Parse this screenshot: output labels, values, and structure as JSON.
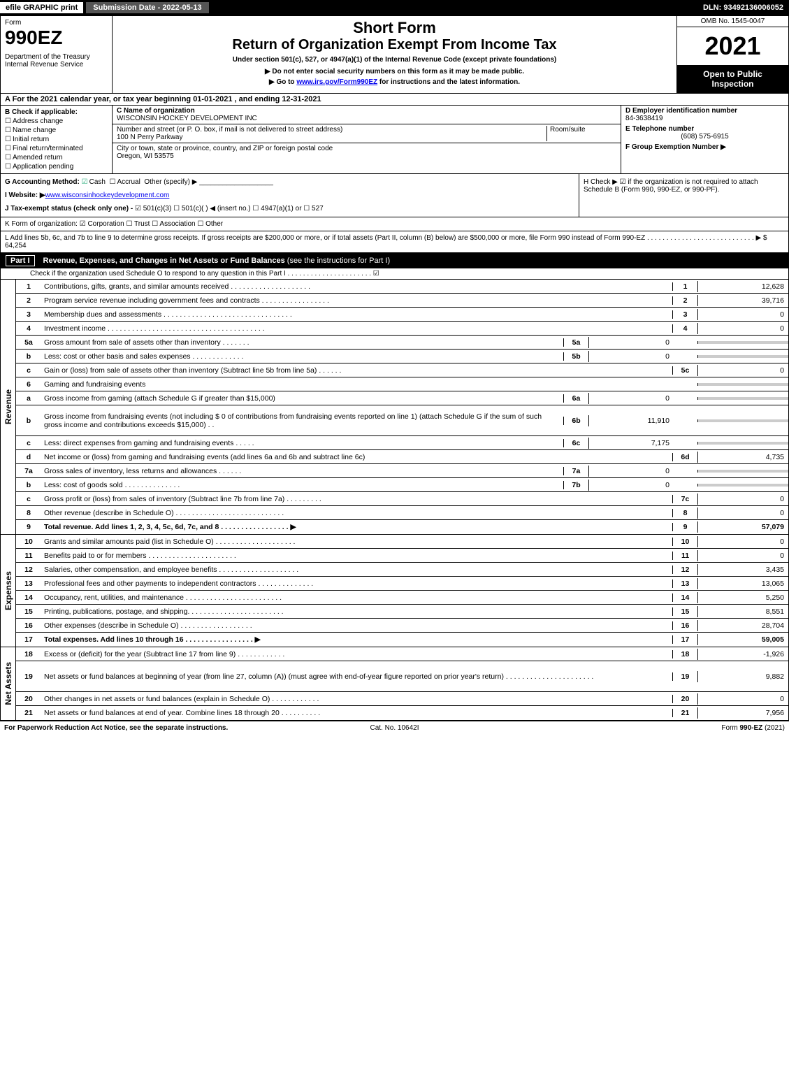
{
  "topbar": {
    "efile": "efile GRAPHIC print",
    "submission": "Submission Date - 2022-05-13",
    "dln": "DLN: 93492136006052"
  },
  "header": {
    "form_label": "Form",
    "form_num": "990EZ",
    "dept": "Department of the Treasury Internal Revenue Service",
    "short": "Short Form",
    "title": "Return of Organization Exempt From Income Tax",
    "under": "Under section 501(c), 527, or 4947(a)(1) of the Internal Revenue Code (except private foundations)",
    "note1": "▶ Do not enter social security numbers on this form as it may be made public.",
    "note2": "▶ Go to www.irs.gov/Form990EZ for instructions and the latest information.",
    "omb": "OMB No. 1545-0047",
    "year": "2021",
    "open": "Open to Public Inspection"
  },
  "row_a": "A  For the 2021 calendar year, or tax year beginning 01-01-2021 , and ending 12-31-2021",
  "section_b": {
    "title": "B  Check if applicable:",
    "items": [
      "Address change",
      "Name change",
      "Initial return",
      "Final return/terminated",
      "Amended return",
      "Application pending"
    ]
  },
  "section_c": {
    "name_label": "C Name of organization",
    "name": "WISCONSIN HOCKEY DEVELOPMENT INC",
    "street_label": "Number and street (or P. O. box, if mail is not delivered to street address)",
    "room_label": "Room/suite",
    "street": "100 N Perry Parkway",
    "city_label": "City or town, state or province, country, and ZIP or foreign postal code",
    "city": "Oregon, WI  53575"
  },
  "section_d": {
    "ein_label": "D Employer identification number",
    "ein": "84-3638419",
    "phone_label": "E Telephone number",
    "phone": "(608) 575-6915",
    "group_label": "F Group Exemption Number  ▶"
  },
  "section_g": {
    "g_label": "G Accounting Method:",
    "g_cash": "Cash",
    "g_accrual": "Accrual",
    "g_other": "Other (specify) ▶",
    "i_label": "I Website: ▶",
    "i_val": "www.wisconsinhockeydevelopment.com",
    "j_label": "J Tax-exempt status (check only one) -",
    "j_opts": "☑ 501(c)(3)  ☐ 501(c)(  ) ◀ (insert no.)  ☐ 4947(a)(1) or  ☐ 527"
  },
  "section_h": "H  Check ▶ ☑ if the organization is not required to attach Schedule B (Form 990, 990-EZ, or 990-PF).",
  "row_k": "K Form of organization:  ☑ Corporation  ☐ Trust  ☐ Association  ☐ Other",
  "row_l": "L Add lines 5b, 6c, and 7b to line 9 to determine gross receipts. If gross receipts are $200,000 or more, or if total assets (Part II, column (B) below) are $500,000 or more, file Form 990 instead of Form 990-EZ . . . . . . . . . . . . . . . . . . . . . . . . . . . . ▶ $ 64,254",
  "part1": {
    "num": "Part I",
    "title": "Revenue, Expenses, and Changes in Net Assets or Fund Balances",
    "sub": " (see the instructions for Part I)",
    "check": "Check if the organization used Schedule O to respond to any question in this Part I . . . . . . . . . . . . . . . . . . . . . . ☑"
  },
  "revenue": {
    "side": "Revenue",
    "lines": [
      {
        "n": "1",
        "d": "Contributions, gifts, grants, and similar amounts received . . . . . . . . . . . . . . . . . . . .",
        "cn": "1",
        "cv": "12,628"
      },
      {
        "n": "2",
        "d": "Program service revenue including government fees and contracts . . . . . . . . . . . . . . . . .",
        "cn": "2",
        "cv": "39,716"
      },
      {
        "n": "3",
        "d": "Membership dues and assessments . . . . . . . . . . . . . . . . . . . . . . . . . . . . . . . .",
        "cn": "3",
        "cv": "0"
      },
      {
        "n": "4",
        "d": "Investment income . . . . . . . . . . . . . . . . . . . . . . . . . . . . . . . . . . . . . . .",
        "cn": "4",
        "cv": "0"
      },
      {
        "n": "5a",
        "d": "Gross amount from sale of assets other than inventory . . . . . . .",
        "sn": "5a",
        "sv": "0",
        "grey": true
      },
      {
        "n": "b",
        "d": "Less: cost or other basis and sales expenses . . . . . . . . . . . . .",
        "sn": "5b",
        "sv": "0",
        "grey": true
      },
      {
        "n": "c",
        "d": "Gain or (loss) from sale of assets other than inventory (Subtract line 5b from line 5a) . . . . . .",
        "cn": "5c",
        "cv": "0"
      },
      {
        "n": "6",
        "d": "Gaming and fundraising events",
        "grey": true
      },
      {
        "n": "a",
        "d": "Gross income from gaming (attach Schedule G if greater than $15,000)",
        "sn": "6a",
        "sv": "0",
        "grey": true
      },
      {
        "n": "b",
        "d": "Gross income from fundraising events (not including $ 0                    of contributions from fundraising events reported on line 1) (attach Schedule G if the sum of such gross income and contributions exceeds $15,000)   .  .",
        "sn": "6b",
        "sv": "11,910",
        "grey": true,
        "tall": true
      },
      {
        "n": "c",
        "d": "Less: direct expenses from gaming and fundraising events  . . . . .",
        "sn": "6c",
        "sv": "7,175",
        "grey": true
      },
      {
        "n": "d",
        "d": "Net income or (loss) from gaming and fundraising events (add lines 6a and 6b and subtract line 6c)",
        "cn": "6d",
        "cv": "4,735"
      },
      {
        "n": "7a",
        "d": "Gross sales of inventory, less returns and allowances . . . . . .",
        "sn": "7a",
        "sv": "0",
        "grey": true
      },
      {
        "n": "b",
        "d": "Less: cost of goods sold            .   .   .   .   .   .   .   .   .   .   .   .   .   .",
        "sn": "7b",
        "sv": "0",
        "grey": true
      },
      {
        "n": "c",
        "d": "Gross profit or (loss) from sales of inventory (Subtract line 7b from line 7a) . . . . . . . . .",
        "cn": "7c",
        "cv": "0"
      },
      {
        "n": "8",
        "d": "Other revenue (describe in Schedule O) . . . . . . . . . . . . . . . . . . . . . . . . . . .",
        "cn": "8",
        "cv": "0"
      },
      {
        "n": "9",
        "d": "Total revenue. Add lines 1, 2, 3, 4, 5c, 6d, 7c, and 8  . . . . . . . . . . . . . . . . .           ▶",
        "cn": "9",
        "cv": "57,079",
        "bold": true
      }
    ]
  },
  "expenses": {
    "side": "Expenses",
    "lines": [
      {
        "n": "10",
        "d": "Grants and similar amounts paid (list in Schedule O) . . . . . . . . . . . . . . . . . . . .",
        "cn": "10",
        "cv": "0"
      },
      {
        "n": "11",
        "d": "Benefits paid to or for members     .   .   .   .   .   .   .   .   .   .   .   .   .   .   .   .   .   .   .   .   .   .",
        "cn": "11",
        "cv": "0"
      },
      {
        "n": "12",
        "d": "Salaries, other compensation, and employee benefits . . . . . . . . . . . . . . . . . . . .",
        "cn": "12",
        "cv": "3,435"
      },
      {
        "n": "13",
        "d": "Professional fees and other payments to independent contractors . . . . . . . . . . . . . .",
        "cn": "13",
        "cv": "13,065"
      },
      {
        "n": "14",
        "d": "Occupancy, rent, utilities, and maintenance . . . . . . . . . . . . . . . . . . . . . . . .",
        "cn": "14",
        "cv": "5,250"
      },
      {
        "n": "15",
        "d": "Printing, publications, postage, and shipping. . . . . . . . . . . . . . . . . . . . . . . .",
        "cn": "15",
        "cv": "8,551"
      },
      {
        "n": "16",
        "d": "Other expenses (describe in Schedule O)     .   .   .   .   .   .   .   .   .   .   .   .   .   .   .   .   .   .",
        "cn": "16",
        "cv": "28,704"
      },
      {
        "n": "17",
        "d": "Total expenses. Add lines 10 through 16     .   .   .   .   .   .   .   .   .   .   .   .   .   .   .   .   .          ▶",
        "cn": "17",
        "cv": "59,005",
        "bold": true
      }
    ]
  },
  "netassets": {
    "side": "Net Assets",
    "lines": [
      {
        "n": "18",
        "d": "Excess or (deficit) for the year (Subtract line 17 from line 9)        .   .   .   .   .   .   .   .   .   .   .   .",
        "cn": "18",
        "cv": "-1,926"
      },
      {
        "n": "19",
        "d": "Net assets or fund balances at beginning of year (from line 27, column (A)) (must agree with end-of-year figure reported on prior year's return) . . . . . . . . . . . . . . . . . . . . . .",
        "cn": "19",
        "cv": "9,882",
        "tall": true
      },
      {
        "n": "20",
        "d": "Other changes in net assets or fund balances (explain in Schedule O) . . . . . . . . . . . .",
        "cn": "20",
        "cv": "0"
      },
      {
        "n": "21",
        "d": "Net assets or fund balances at end of year. Combine lines 18 through 20 . . . . . . . . . .",
        "cn": "21",
        "cv": "7,956"
      }
    ]
  },
  "footer": {
    "left": "For Paperwork Reduction Act Notice, see the separate instructions.",
    "center": "Cat. No. 10642I",
    "right": "Form 990-EZ (2021)"
  },
  "colors": {
    "bg": "#ffffff",
    "black": "#000000",
    "grey_cell": "#cccccc",
    "link": "#0000ee",
    "check_green": "#22aa77"
  }
}
